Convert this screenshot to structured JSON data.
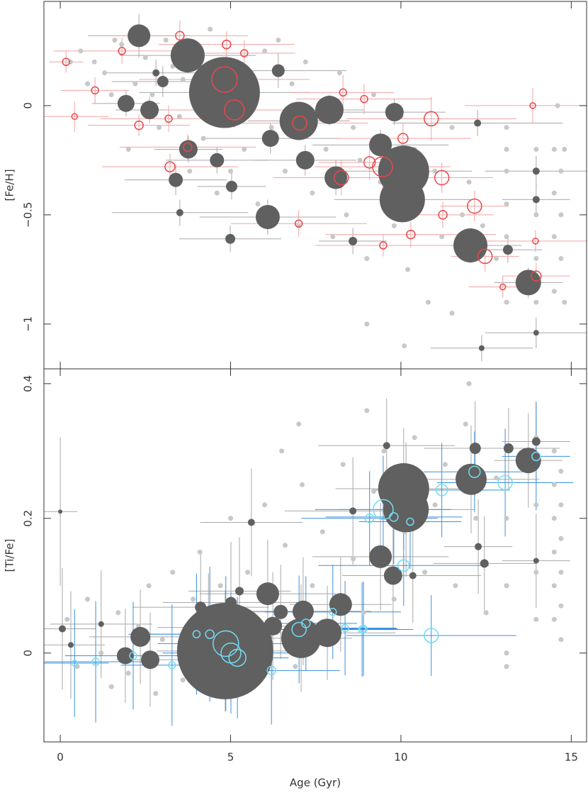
{
  "chart_data": [
    {
      "type": "scatter",
      "ylabel": "[Fe/H]",
      "xlim": [
        -0.48,
        15.45
      ],
      "ylim": [
        -1.205,
        0.477
      ],
      "xticks": [
        0,
        5,
        10,
        15
      ],
      "yticks": [
        {
          "value": -1,
          "label": "−1"
        },
        {
          "value": -0.5,
          "label": "−0.5"
        },
        0
      ],
      "series": [
        {
          "color": "#c8c8c8",
          "marker": "dot",
          "x": [
            0.3,
            0.6,
            0.8,
            1.0,
            1.3,
            1.5,
            1.6,
            1.8,
            2.0,
            2.2,
            2.5,
            2.7,
            2.9,
            3.1,
            3.3,
            3.5,
            3.6,
            3.8,
            4.0,
            4.2,
            4.4,
            4.6,
            4.8,
            5.0,
            5.2,
            5.4,
            5.6,
            5.8,
            6.0,
            6.2,
            6.4,
            6.6,
            6.8,
            7.0,
            7.2,
            7.4,
            7.6,
            7.8,
            8.0,
            8.2,
            8.4,
            8.6,
            8.8,
            9.0,
            9.2,
            9.4,
            9.6,
            9.8,
            10.0,
            10.2,
            10.4,
            10.6,
            10.8,
            11.0,
            11.2,
            11.5,
            11.8,
            12.0,
            12.4,
            12.8,
            13.1,
            13.1,
            13.1,
            13.1,
            13.1,
            13.1,
            13.97,
            13.97,
            13.97,
            13.97,
            14.5,
            14.5,
            14.5,
            14.5,
            14.6,
            14.7,
            14.7,
            14.7,
            14.8,
            14.8,
            10.1,
            9.0,
            11.5
          ],
          "values": [
            0.2,
            0.25,
            0.1,
            0.2,
            0.15,
            0.05,
            0.3,
            0.28,
            -0.2,
            0.1,
            0.22,
            0.05,
            -0.1,
            0.3,
            0.18,
            -0.05,
            0.12,
            -0.3,
            0.02,
            -0.15,
            0.35,
            -0.4,
            0.2,
            -0.3,
            0.05,
            -0.2,
            0.15,
            -0.45,
            0.25,
            -0.1,
            0.3,
            -0.3,
            0.1,
            -0.55,
            0.2,
            -0.4,
            0.0,
            -0.2,
            -0.6,
            0.15,
            -0.5,
            -0.1,
            -0.25,
            -0.7,
            0.05,
            -0.35,
            -0.15,
            -0.55,
            -0.05,
            -0.75,
            -0.2,
            -0.4,
            -0.9,
            -0.3,
            -0.6,
            -0.1,
            -0.5,
            -0.35,
            -0.55,
            -0.7,
            -0.1,
            -0.2,
            -0.3,
            -0.45,
            -0.6,
            -0.9,
            -0.2,
            -0.5,
            -0.7,
            -0.9,
            -0.2,
            -0.4,
            -0.6,
            -0.85,
            0.0,
            -0.3,
            -0.5,
            -0.7,
            -0.9,
            -0.2,
            -1.1,
            -1.0,
            -0.95
          ]
        },
        {
          "color": "#606060",
          "errcolor": "#a8a8a8",
          "marker": "filled",
          "x": [
            2.31,
            3.74,
            4.82,
            1.93,
            2.62,
            3.01,
            6.4,
            7.0,
            7.9,
            9.81,
            9.4,
            10.08,
            10.04,
            8.09,
            7.19,
            6.17,
            3.76,
            3.39,
            4.6,
            5.03,
            6.09,
            12.04,
            13.74,
            13.14,
            4.99,
            8.59,
            3.51,
            13.97,
            13.97,
            12.25,
            2.81,
            12.37,
            13.97
          ],
          "values": [
            0.32,
            0.23,
            0.06,
            0.01,
            -0.02,
            0.11,
            0.16,
            -0.07,
            -0.02,
            -0.03,
            -0.18,
            -0.3,
            -0.43,
            -0.33,
            -0.25,
            -0.15,
            -0.2,
            -0.34,
            -0.25,
            -0.37,
            -0.51,
            -0.64,
            -0.81,
            -0.66,
            -0.61,
            -0.62,
            -0.49,
            -0.3,
            -0.43,
            -0.08,
            0.15,
            -1.11,
            -1.04
          ],
          "sizes": [
            16,
            24,
            50,
            12,
            13,
            8,
            9,
            27,
            20,
            13,
            16,
            36,
            32,
            16,
            13,
            12,
            13,
            10,
            10,
            8,
            17,
            24,
            18,
            7,
            7,
            6,
            5,
            5,
            5,
            5,
            5,
            4,
            4
          ],
          "xerr": [
            1.5,
            2,
            2.5,
            1,
            1,
            1.5,
            2,
            1.5,
            1,
            1.5,
            2,
            2,
            2,
            1.5,
            1.5,
            2,
            1,
            1.5,
            1.5,
            1,
            2,
            1.5,
            1,
            1,
            1.5,
            1,
            2,
            1.5,
            1,
            2.5,
            1.5,
            1.5,
            1.5
          ],
          "yerr": [
            0.1,
            0.08,
            0.1,
            0.06,
            0.06,
            0.07,
            0.08,
            0.08,
            0.07,
            0.06,
            0.07,
            0.1,
            0.08,
            0.08,
            0.07,
            0.07,
            0.06,
            0.07,
            0.06,
            0.06,
            0.08,
            0.08,
            0.07,
            0.06,
            0.06,
            0.06,
            0.06,
            0.07,
            0.07,
            0.06,
            0.06,
            0.06,
            0.07
          ]
        },
        {
          "color": "#e8474a",
          "errcolor": "#f3a3a3",
          "marker": "open",
          "x": [
            0.17,
            3.51,
            1.81,
            4.82,
            5.11,
            4.88,
            5.4,
            1.02,
            0.42,
            2.31,
            3.18,
            7.03,
            10.89,
            13.87,
            10.06,
            9.46,
            9.08,
            8.25,
            11.2,
            3.22,
            3.74,
            12.16,
            12.47,
            13.97,
            10.29,
            7.0,
            9.48,
            13.95,
            11.23,
            12.99,
            8.92,
            8.3
          ],
          "values": [
            0.2,
            0.32,
            0.25,
            0.12,
            -0.02,
            0.28,
            0.24,
            0.07,
            -0.05,
            -0.09,
            -0.06,
            -0.08,
            -0.06,
            0,
            -0.15,
            -0.28,
            -0.26,
            -0.33,
            -0.33,
            -0.28,
            -0.19,
            -0.46,
            -0.69,
            -0.78,
            -0.59,
            -0.54,
            -0.64,
            -0.62,
            -0.5,
            -0.83,
            0.03,
            0.06
          ],
          "sizes": [
            5,
            6,
            5,
            18,
            14,
            6,
            5,
            5,
            4,
            6,
            5,
            10,
            10,
            4,
            7,
            14,
            8,
            10,
            10,
            7,
            6,
            10,
            10,
            7,
            6,
            5,
            5,
            4,
            6,
            4,
            5,
            5
          ],
          "xerr": [
            0.5,
            2,
            2,
            2.5,
            2,
            2,
            1.5,
            1,
            1,
            1.5,
            2,
            2,
            2.5,
            2,
            2,
            2,
            1.5,
            2,
            1.5,
            2,
            2,
            1,
            1,
            1,
            2.5,
            2,
            2,
            1.5,
            1.5,
            1,
            2,
            1.5
          ],
          "yerr": [
            0.05,
            0.07,
            0.06,
            0.1,
            0.08,
            0.06,
            0.06,
            0.06,
            0.07,
            0.05,
            0.06,
            0.08,
            0.1,
            0.08,
            0.07,
            0.1,
            0.08,
            0.08,
            0.07,
            0.06,
            0.06,
            0.07,
            0.07,
            0.06,
            0.06,
            0.06,
            0.05,
            0.05,
            0.06,
            0.05,
            0.07,
            0.08
          ]
        }
      ]
    },
    {
      "type": "scatter",
      "ylabel": "[Ti/Fe]",
      "xlabel": "Age (Gyr)",
      "xlim": [
        -0.48,
        15.45
      ],
      "ylim": [
        -0.132,
        0.422
      ],
      "xticks": [
        0,
        5,
        10,
        15
      ],
      "yticks": [
        0,
        0.2,
        0.4
      ],
      "series": [
        {
          "color": "#c8c8c8",
          "marker": "dot",
          "x": [
            0.2,
            0.5,
            0.8,
            1.2,
            1.5,
            1.7,
            2.0,
            2.3,
            2.6,
            2.8,
            3.0,
            3.3,
            3.6,
            3.9,
            4.1,
            4.4,
            4.7,
            5.0,
            5.3,
            5.5,
            5.8,
            6.0,
            6.3,
            6.6,
            6.9,
            7.1,
            7.4,
            7.7,
            8.0,
            8.3,
            8.6,
            8.9,
            9.2,
            9.5,
            9.8,
            10.1,
            10.4,
            10.7,
            11.0,
            11.3,
            11.6,
            11.9,
            12.2,
            12.5,
            12.8,
            13.1,
            13.1,
            13.1,
            13.1,
            13.1,
            13.97,
            13.97,
            13.97,
            13.97,
            14.5,
            14.5,
            14.5,
            14.5,
            14.5,
            14.5,
            14.7,
            14.7,
            14.7,
            14.7,
            14.7,
            14.7,
            7.0,
            6.5,
            9.0,
            12.0
          ],
          "values": [
            0.05,
            -0.02,
            0.08,
            0.0,
            -0.05,
            0.06,
            -0.03,
            0.04,
            0.1,
            -0.06,
            0.02,
            0.12,
            -0.04,
            0.08,
            0.15,
            -0.02,
            0.1,
            0.2,
            -0.05,
            0.12,
            0.03,
            0.22,
            0.08,
            0.16,
            -0.02,
            0.25,
            0.1,
            0.18,
            0.02,
            0.28,
            0.14,
            0.06,
            0.24,
            0.3,
            0.08,
            0.18,
            0.32,
            0.12,
            0.22,
            0.28,
            0.1,
            0.34,
            0.2,
            0.06,
            0.26,
            0.3,
            0.2,
            0.1,
            0.0,
            -0.02,
            0.32,
            0.22,
            0.12,
            0.05,
            0.3,
            0.25,
            0.2,
            0.15,
            0.1,
            0.05,
            0.27,
            0.22,
            0.17,
            0.12,
            0.07,
            0.02,
            0.34,
            0.3,
            0.36,
            0.4
          ]
        },
        {
          "color": "#606060",
          "errcolor": "#a8a8a8",
          "marker": "filled",
          "x": [
            0,
            0.06,
            0.31,
            1.2,
            1.91,
            2.35,
            2.64,
            4.84,
            4.35,
            4.12,
            5.01,
            5.26,
            6.09,
            6.24,
            6.47,
            7.13,
            7.07,
            7.84,
            8.23,
            9.4,
            9.77,
            10.08,
            10.15,
            12.06,
            12.18,
            13.74,
            13.97,
            13.16,
            12.45,
            10.35,
            9.58,
            5.61,
            8.59,
            12.27,
            13.97
          ],
          "values": [
            0.21,
            0.036,
            0.012,
            0.043,
            -0.004,
            0.024,
            -0.01,
            0.003,
            0.038,
            0.068,
            0.075,
            0.092,
            0.088,
            0.04,
            0.061,
            0.062,
            0.022,
            0.03,
            0.072,
            0.143,
            0.115,
            0.244,
            0.213,
            0.258,
            0.304,
            0.286,
            0.314,
            0.304,
            0.133,
            0.115,
            0.308,
            0.194,
            0.211,
            0.158,
            0.137
          ],
          "sizes": [
            3,
            5,
            4,
            4,
            12,
            14,
            13,
            68,
            10,
            8,
            8,
            6,
            16,
            13,
            10,
            15,
            28,
            20,
            16,
            16,
            13,
            36,
            32,
            22,
            8,
            18,
            6,
            7,
            6,
            5,
            5,
            5,
            5,
            5,
            4
          ],
          "xerr": [
            0.5,
            1,
            1,
            1.5,
            1,
            1.5,
            1,
            2,
            1.5,
            2,
            2,
            1.5,
            2,
            2,
            1.5,
            2,
            1.5,
            2,
            1.5,
            2,
            1.5,
            2,
            2,
            2,
            1.5,
            1,
            1,
            1.5,
            1.5,
            2,
            2,
            1.5,
            2,
            1,
            1
          ],
          "yerr": [
            0.11,
            0.09,
            0.08,
            0.08,
            0.07,
            0.07,
            0.07,
            0.09,
            0.08,
            0.08,
            0.09,
            0.08,
            0.08,
            0.08,
            0.07,
            0.08,
            0.08,
            0.07,
            0.07,
            0.08,
            0.08,
            0.09,
            0.1,
            0.08,
            0.07,
            0.07,
            0.06,
            0.06,
            0.07,
            0.07,
            0.07,
            0.08,
            0.08,
            0.07,
            0.07
          ]
        },
        {
          "color": "#72dcf2",
          "errcolor": "#3a8fe0",
          "marker": "open",
          "x": [
            4.86,
            5.01,
            5.2,
            4.39,
            4.0,
            3.28,
            2.14,
            1.04,
            0.42,
            6.2,
            7.01,
            7.21,
            8.0,
            8.36,
            8.9,
            9.08,
            9.48,
            9.79,
            10.08,
            10.27,
            10.89,
            11.2,
            12.16,
            13.06,
            13.97,
            8.86
          ],
          "values": [
            0.014,
            0,
            -0.007,
            0.028,
            0.028,
            -0.018,
            -0.004,
            -0.013,
            -0.015,
            -0.026,
            0.035,
            0.044,
            0.061,
            0.037,
            0.036,
            0.2,
            0.213,
            0.202,
            0.13,
            0.195,
            0.026,
            0.242,
            0.269,
            0.253,
            0.292,
            0.035
          ],
          "sizes": [
            18,
            14,
            12,
            6,
            5,
            5,
            5,
            5,
            4,
            6,
            10,
            6,
            5,
            5,
            5,
            6,
            14,
            6,
            8,
            5,
            10,
            8,
            8,
            10,
            6,
            5
          ],
          "xerr": [
            2,
            2,
            1.5,
            2,
            2,
            1.5,
            2,
            1.5,
            1,
            2,
            2,
            1.5,
            2,
            1.5,
            1,
            2,
            2,
            2,
            2.5,
            1.5,
            2.5,
            2,
            1.5,
            2,
            1,
            1.5
          ],
          "yerr": [
            0.1,
            0.09,
            0.09,
            0.1,
            0.09,
            0.09,
            0.08,
            0.09,
            0.08,
            0.08,
            0.08,
            0.07,
            0.07,
            0.07,
            0.07,
            0.07,
            0.08,
            0.07,
            0.06,
            0.07,
            0.06,
            0.07,
            0.06,
            0.08,
            0.08,
            0.07
          ]
        }
      ]
    }
  ]
}
